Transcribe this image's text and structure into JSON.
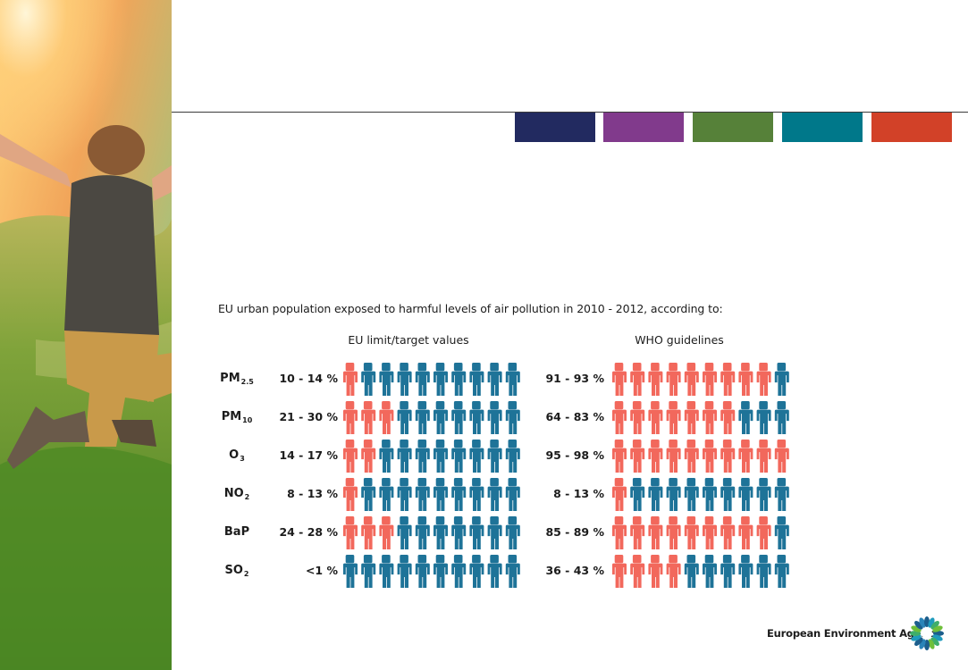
{
  "colors": {
    "exposed": "#f2685c",
    "not_exposed": "#1e7398",
    "tabs": [
      "#222a60",
      "#813a8c",
      "#568139",
      "#00788a",
      "#d24128"
    ]
  },
  "chart_data": {
    "type": "pictogram",
    "title": "EU urban population exposed to harmful levels of air pollution in 2010 - 2012, according to:",
    "icons_per_row": 10,
    "groups": [
      {
        "name": "EU limit/target values",
        "rows": [
          {
            "pollutant": "PM",
            "subscript": "2.5",
            "range": "10 - 14 %",
            "exposed_icons": 1
          },
          {
            "pollutant": "PM",
            "subscript": "10",
            "range": "21 - 30 %",
            "exposed_icons": 3
          },
          {
            "pollutant": "O",
            "subscript": "3",
            "range": "14 - 17 %",
            "exposed_icons": 2
          },
          {
            "pollutant": "NO",
            "subscript": "2",
            "range": "8 - 13 %",
            "exposed_icons": 1
          },
          {
            "pollutant": "BaP",
            "subscript": "",
            "range": "24 - 28 %",
            "exposed_icons": 3
          },
          {
            "pollutant": "SO",
            "subscript": "2",
            "range": "<1 %",
            "exposed_icons": 0
          }
        ]
      },
      {
        "name": "WHO guidelines",
        "rows": [
          {
            "pollutant": "PM",
            "subscript": "2.5",
            "range": "91 - 93 %",
            "exposed_icons": 9
          },
          {
            "pollutant": "PM",
            "subscript": "10",
            "range": "64 - 83 %",
            "exposed_icons": 7
          },
          {
            "pollutant": "O",
            "subscript": "3",
            "range": "95 - 98 %",
            "exposed_icons": 10
          },
          {
            "pollutant": "NO",
            "subscript": "2",
            "range": "8 - 13 %",
            "exposed_icons": 1
          },
          {
            "pollutant": "BaP",
            "subscript": "",
            "range": "85 - 89 %",
            "exposed_icons": 9
          },
          {
            "pollutant": "SO",
            "subscript": "2",
            "range": "36 - 43 %",
            "exposed_icons": 4
          }
        ]
      }
    ]
  },
  "footer": {
    "agency_name": "European Environment Agency",
    "logo_icon": "eea-sun-logo-icon"
  },
  "photo": {
    "icon": "jumping-person-field-photo"
  }
}
